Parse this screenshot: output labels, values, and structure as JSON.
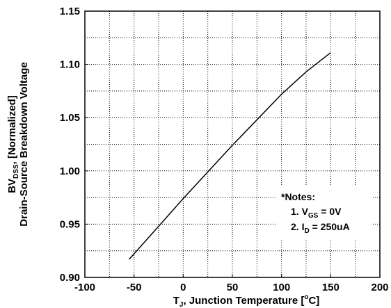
{
  "chart_data": {
    "type": "line",
    "xlim": [
      -100,
      200
    ],
    "ylim": [
      0.9,
      1.15
    ],
    "x_ticks": [
      -100,
      -50,
      0,
      50,
      100,
      150,
      200
    ],
    "y_ticks": [
      0.9,
      0.95,
      1.0,
      1.05,
      1.1,
      1.15
    ],
    "x_tick_labels": [
      "-100",
      "-50",
      "0",
      "50",
      "100",
      "150",
      "200"
    ],
    "y_tick_labels": [
      "0.90",
      "0.95",
      "1.00",
      "1.05",
      "1.10",
      "1.15"
    ],
    "grid": "dotted",
    "xlabel": {
      "symbol": "T",
      "sub": "J",
      "text": ", Junction Temperature [",
      "sup": "o",
      "unit_end": "C]"
    },
    "ylabel": {
      "line1_symbol": "BV",
      "line1_sub": "DSS",
      "line1_rest": ", [Normalized]",
      "line2": "Drain-Source Breakdown Voltage"
    },
    "series": [
      {
        "x": [
          -55,
          -25,
          0,
          25,
          50,
          75,
          100,
          125,
          150
        ],
        "y": [
          0.917,
          0.948,
          0.974,
          0.999,
          1.024,
          1.048,
          1.072,
          1.093,
          1.111
        ]
      }
    ],
    "notes": {
      "title": "*Notes:",
      "note1": {
        "prefix": "1. V",
        "sub": "GS",
        "rest": " = 0V"
      },
      "note2": {
        "prefix": "2. I",
        "sub": "D",
        "rest": " = 250uA"
      },
      "placement": "bottom-right"
    }
  }
}
